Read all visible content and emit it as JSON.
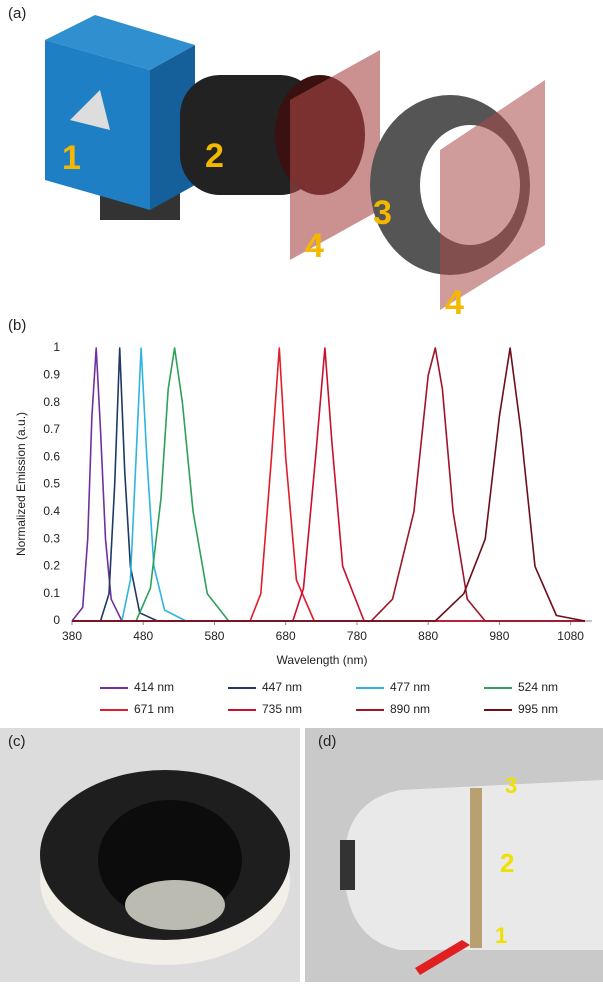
{
  "panel_a": {
    "label": "(a)",
    "callouts": [
      "1",
      "2",
      "3",
      "4",
      "4"
    ]
  },
  "chart_data": {
    "type": "line",
    "panel_label": "(b)",
    "x_label": "Wavelength (nm)",
    "y_label": "Normalized Emission (a.u.)",
    "xlim": [
      380,
      1110
    ],
    "ylim": [
      0,
      1
    ],
    "xticks": [
      380,
      480,
      580,
      680,
      780,
      880,
      980,
      1080
    ],
    "yticks": [
      0,
      0.1,
      0.2,
      0.3,
      0.4,
      0.5,
      0.6,
      0.7,
      0.8,
      0.9,
      1
    ],
    "series": [
      {
        "name": "414 nm",
        "color": "#7030a0",
        "x": [
          380,
          395,
          402,
          408,
          414,
          420,
          427,
          435,
          450,
          1100
        ],
        "values": [
          0,
          0.05,
          0.3,
          0.75,
          1,
          0.7,
          0.3,
          0.08,
          0,
          0
        ]
      },
      {
        "name": "447 nm",
        "color": "#1f3864",
        "x": [
          380,
          420,
          432,
          440,
          447,
          454,
          462,
          475,
          500,
          1100
        ],
        "values": [
          0,
          0,
          0.1,
          0.5,
          1,
          0.55,
          0.2,
          0.03,
          0,
          0
        ]
      },
      {
        "name": "477 nm",
        "color": "#2eb5e0",
        "x": [
          380,
          450,
          462,
          470,
          477,
          485,
          495,
          510,
          540,
          1100
        ],
        "values": [
          0,
          0,
          0.15,
          0.6,
          1,
          0.6,
          0.2,
          0.04,
          0,
          0
        ]
      },
      {
        "name": "524 nm",
        "color": "#2ea05a",
        "x": [
          380,
          470,
          490,
          505,
          515,
          524,
          535,
          550,
          570,
          600,
          1100
        ],
        "values": [
          0,
          0,
          0.12,
          0.45,
          0.85,
          1,
          0.8,
          0.4,
          0.1,
          0,
          0
        ]
      },
      {
        "name": "671 nm",
        "color": "#e01e2a",
        "x": [
          380,
          630,
          645,
          660,
          671,
          680,
          695,
          720,
          1100
        ],
        "values": [
          0,
          0,
          0.1,
          0.6,
          1,
          0.6,
          0.15,
          0,
          0
        ]
      },
      {
        "name": "735 nm",
        "color": "#c8102e",
        "x": [
          380,
          690,
          705,
          722,
          735,
          745,
          760,
          790,
          1100
        ],
        "values": [
          0,
          0,
          0.12,
          0.6,
          1,
          0.65,
          0.2,
          0,
          0
        ]
      },
      {
        "name": "890 nm",
        "color": "#a0142a",
        "x": [
          380,
          800,
          830,
          860,
          880,
          890,
          900,
          915,
          935,
          960,
          1100
        ],
        "values": [
          0,
          0,
          0.08,
          0.4,
          0.9,
          1,
          0.85,
          0.4,
          0.08,
          0,
          0
        ]
      },
      {
        "name": "995 nm",
        "color": "#6b0f1a",
        "x": [
          380,
          890,
          930,
          960,
          980,
          995,
          1010,
          1030,
          1060,
          1100
        ],
        "values": [
          0,
          0,
          0.1,
          0.3,
          0.75,
          1,
          0.7,
          0.2,
          0.02,
          0
        ]
      }
    ]
  },
  "panel_c": {
    "label": "(c)"
  },
  "panel_d": {
    "label": "(d)",
    "callouts": [
      "1",
      "2",
      "3"
    ]
  }
}
